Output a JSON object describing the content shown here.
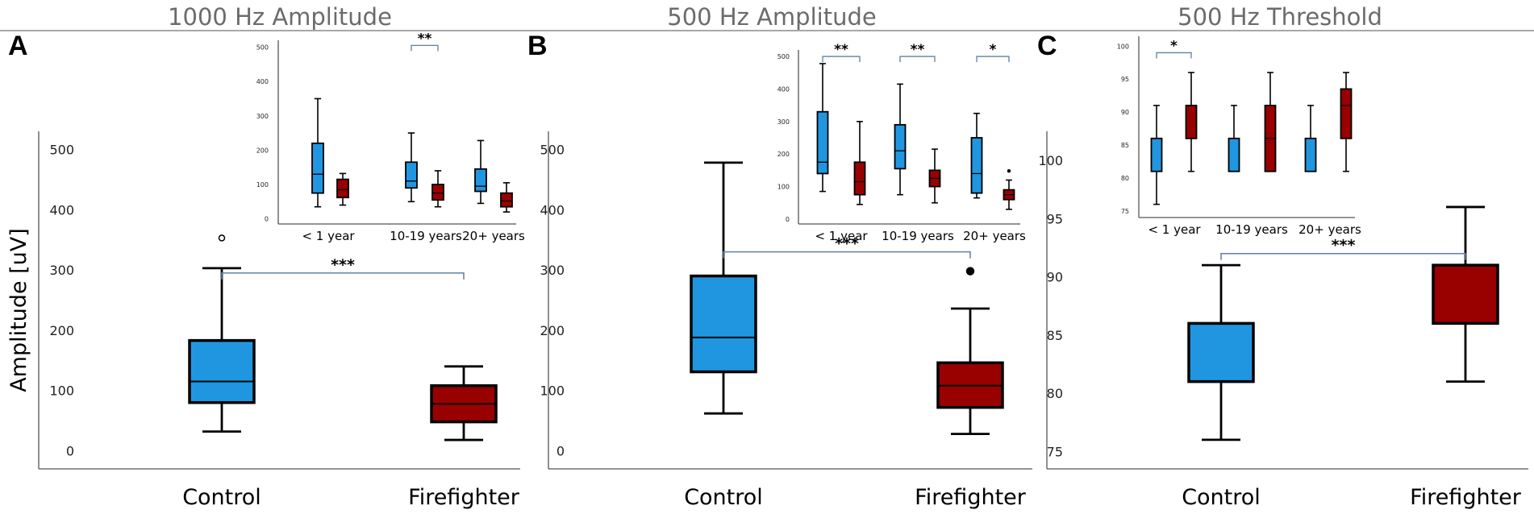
{
  "colors": {
    "control": "#2196e0",
    "firefighter": "#990000",
    "bracket": "#5f7fa8",
    "title": "#6b6b6b"
  },
  "chart_data": [
    {
      "id": "A",
      "type": "box",
      "panel_label": "A",
      "title": "1000 Hz Amplitude",
      "ylabel": "Amplitude [uV]",
      "ylim": [
        -30,
        530
      ],
      "yticks": [
        0,
        100,
        200,
        300,
        400,
        500
      ],
      "categories": [
        "Control",
        "Firefighter"
      ],
      "boxes": [
        {
          "category": "Control",
          "group": "control",
          "min": 32,
          "q1": 80,
          "median": 115,
          "q3": 183,
          "max": 303,
          "outliers": [
            353
          ]
        },
        {
          "category": "Firefighter",
          "group": "firefighter",
          "min": 18,
          "q1": 48,
          "median": 78,
          "q3": 108,
          "max": 140,
          "outliers": []
        }
      ],
      "significance": [
        {
          "from": 0,
          "to": 1,
          "level": 295,
          "label": "***"
        }
      ],
      "inset": {
        "ylim": [
          -15,
          520
        ],
        "yticks": [
          0,
          100,
          200,
          300,
          400,
          500
        ],
        "categories": [
          "< 1 year",
          "10-19 years",
          "20+ years"
        ],
        "boxes": [
          {
            "category": 0,
            "group": "control",
            "min": 35,
            "q1": 75,
            "median": 130,
            "q3": 220,
            "max": 350,
            "outliers": []
          },
          {
            "category": 0,
            "group": "firefighter",
            "min": 40,
            "q1": 62,
            "median": 85,
            "q3": 115,
            "max": 132,
            "outliers": []
          },
          {
            "category": 1,
            "group": "control",
            "min": 50,
            "q1": 90,
            "median": 110,
            "q3": 165,
            "max": 250,
            "outliers": []
          },
          {
            "category": 1,
            "group": "firefighter",
            "min": 35,
            "q1": 55,
            "median": 75,
            "q3": 100,
            "max": 140,
            "outliers": []
          },
          {
            "category": 2,
            "group": "control",
            "min": 45,
            "q1": 80,
            "median": 95,
            "q3": 145,
            "max": 228,
            "outliers": []
          },
          {
            "category": 2,
            "group": "firefighter",
            "min": 20,
            "q1": 35,
            "median": 52,
            "q3": 75,
            "max": 105,
            "outliers": []
          }
        ],
        "significance": [
          {
            "category": 1,
            "level": 505,
            "label": "**"
          }
        ]
      }
    },
    {
      "id": "B",
      "type": "box",
      "panel_label": "B",
      "title": "500 Hz Amplitude",
      "ylabel": "",
      "ylim": [
        -30,
        530
      ],
      "yticks": [
        0,
        100,
        200,
        300,
        400,
        500
      ],
      "categories": [
        "Control",
        "Firefighter"
      ],
      "boxes": [
        {
          "category": "Control",
          "group": "control",
          "min": 62,
          "q1": 131,
          "median": 188,
          "q3": 290,
          "max": 478,
          "outliers": []
        },
        {
          "category": "Firefighter",
          "group": "firefighter",
          "min": 28,
          "q1": 72,
          "median": 108,
          "q3": 146,
          "max": 236,
          "outliers": [
            298
          ]
        }
      ],
      "significance": [
        {
          "from": 0,
          "to": 1,
          "level": 330,
          "label": "***"
        }
      ],
      "inset": {
        "ylim": [
          -15,
          520
        ],
        "yticks": [
          0,
          100,
          200,
          300,
          400,
          500
        ],
        "categories": [
          "< 1 year",
          "10-19 years",
          "20+ years"
        ],
        "boxes": [
          {
            "category": 0,
            "group": "control",
            "min": 85,
            "q1": 140,
            "median": 175,
            "q3": 330,
            "max": 478,
            "outliers": []
          },
          {
            "category": 0,
            "group": "firefighter",
            "min": 45,
            "q1": 75,
            "median": 115,
            "q3": 175,
            "max": 300,
            "outliers": []
          },
          {
            "category": 1,
            "group": "control",
            "min": 75,
            "q1": 155,
            "median": 210,
            "q3": 290,
            "max": 415,
            "outliers": []
          },
          {
            "category": 1,
            "group": "firefighter",
            "min": 50,
            "q1": 100,
            "median": 125,
            "q3": 150,
            "max": 215,
            "outliers": []
          },
          {
            "category": 2,
            "group": "control",
            "min": 65,
            "q1": 80,
            "median": 140,
            "q3": 250,
            "max": 325,
            "outliers": []
          },
          {
            "category": 2,
            "group": "firefighter",
            "min": 30,
            "q1": 60,
            "median": 75,
            "q3": 90,
            "max": 120,
            "outliers": [
              148
            ]
          }
        ],
        "significance": [
          {
            "category": 0,
            "level": 500,
            "label": "**"
          },
          {
            "category": 1,
            "level": 500,
            "label": "**"
          },
          {
            "category": 2,
            "level": 500,
            "label": "*"
          }
        ]
      }
    },
    {
      "id": "C",
      "type": "box",
      "panel_label": "C",
      "title": "500 Hz Threshold",
      "ylabel": "",
      "ylim": [
        73.5,
        102.5
      ],
      "yticks": [
        75,
        80,
        85,
        90,
        95,
        100
      ],
      "categories": [
        "Control",
        "Firefighter"
      ],
      "boxes": [
        {
          "category": "Control",
          "group": "control",
          "min": 76,
          "q1": 81,
          "median": 86,
          "q3": 86,
          "max": 91,
          "outliers": []
        },
        {
          "category": "Firefighter",
          "group": "firefighter",
          "min": 81,
          "q1": 86,
          "median": 91,
          "q3": 91,
          "max": 96,
          "outliers": []
        }
      ],
      "significance": [
        {
          "from": 0,
          "to": 1,
          "level": 92,
          "label": "***"
        }
      ],
      "inset": {
        "ylim": [
          74,
          101.5
        ],
        "yticks": [
          75,
          80,
          85,
          90,
          95,
          100
        ],
        "categories": [
          "< 1 year",
          "10-19 years",
          "20+ years"
        ],
        "boxes": [
          {
            "category": 0,
            "group": "control",
            "min": 76,
            "q1": 81,
            "median": 86,
            "q3": 86,
            "max": 91,
            "outliers": []
          },
          {
            "category": 0,
            "group": "firefighter",
            "min": 81,
            "q1": 86,
            "median": 91,
            "q3": 91,
            "max": 96,
            "outliers": []
          },
          {
            "category": 1,
            "group": "control",
            "min": 81,
            "q1": 81,
            "median": 86,
            "q3": 86,
            "max": 91,
            "outliers": []
          },
          {
            "category": 1,
            "group": "firefighter",
            "min": 81,
            "q1": 81,
            "median": 86,
            "q3": 91,
            "max": 96,
            "outliers": []
          },
          {
            "category": 2,
            "group": "control",
            "min": 81,
            "q1": 81,
            "median": 86,
            "q3": 86,
            "max": 91,
            "outliers": []
          },
          {
            "category": 2,
            "group": "firefighter",
            "min": 81,
            "q1": 86,
            "median": 91,
            "q3": 93.5,
            "max": 96,
            "outliers": []
          }
        ],
        "significance": [
          {
            "category": 0,
            "level": 99,
            "label": "*"
          }
        ]
      }
    }
  ]
}
